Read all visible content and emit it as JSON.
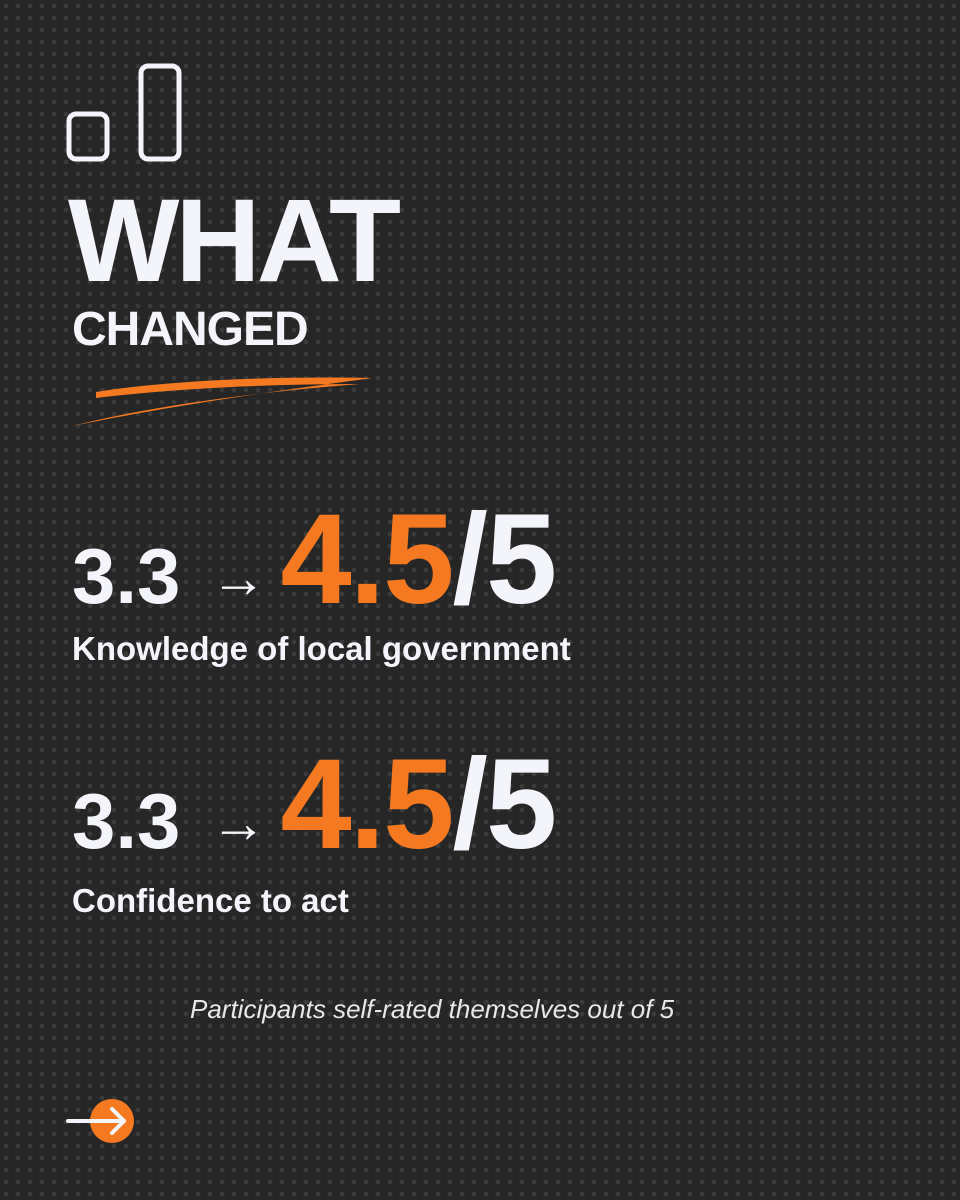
{
  "header": {
    "title_line1": "WHAT",
    "title_line2": "CHANGED"
  },
  "stats": [
    {
      "from": "3.3",
      "arrow": "→",
      "to": "4.5",
      "out_of": "/5",
      "label": "Knowledge of local government"
    },
    {
      "from": "3.3",
      "arrow": "→",
      "to": "4.5",
      "out_of": "/5",
      "label": "Confidence to act"
    }
  ],
  "footnote": "Participants self-rated themselves out of 5"
}
